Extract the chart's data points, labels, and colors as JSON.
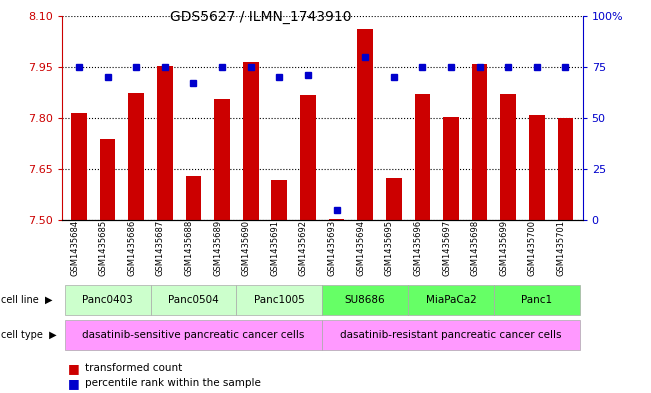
{
  "title": "GDS5627 / ILMN_1743910",
  "samples": [
    "GSM1435684",
    "GSM1435685",
    "GSM1435686",
    "GSM1435687",
    "GSM1435688",
    "GSM1435689",
    "GSM1435690",
    "GSM1435691",
    "GSM1435692",
    "GSM1435693",
    "GSM1435694",
    "GSM1435695",
    "GSM1435696",
    "GSM1435697",
    "GSM1435698",
    "GSM1435699",
    "GSM1435700",
    "GSM1435701"
  ],
  "bar_values": [
    7.814,
    7.737,
    7.873,
    7.951,
    7.628,
    7.856,
    7.965,
    7.617,
    7.868,
    7.503,
    8.062,
    7.625,
    7.869,
    7.803,
    7.958,
    7.869,
    7.808,
    7.8
  ],
  "dot_values": [
    75,
    70,
    75,
    75,
    67,
    75,
    75,
    70,
    71,
    5,
    80,
    70,
    75,
    75,
    75,
    75,
    75,
    75
  ],
  "bar_color": "#cc0000",
  "dot_color": "#0000cc",
  "ylim_left": [
    7.5,
    8.1
  ],
  "ylim_right": [
    0,
    100
  ],
  "yticks_left": [
    7.5,
    7.65,
    7.8,
    7.95,
    8.1
  ],
  "yticks_right": [
    0,
    25,
    50,
    75,
    100
  ],
  "cell_lines": [
    {
      "name": "Panc0403",
      "start": 0,
      "end": 3,
      "color": "#ccffcc"
    },
    {
      "name": "Panc0504",
      "start": 3,
      "end": 6,
      "color": "#ccffcc"
    },
    {
      "name": "Panc1005",
      "start": 6,
      "end": 9,
      "color": "#ccffcc"
    },
    {
      "name": "SU8686",
      "start": 9,
      "end": 12,
      "color": "#66ff66"
    },
    {
      "name": "MiaPaCa2",
      "start": 12,
      "end": 15,
      "color": "#66ff66"
    },
    {
      "name": "Panc1",
      "start": 15,
      "end": 18,
      "color": "#66ff66"
    }
  ],
  "cell_types": [
    {
      "name": "dasatinib-sensitive pancreatic cancer cells",
      "start": 0,
      "end": 9,
      "color": "#ff99ff"
    },
    {
      "name": "dasatinib-resistant pancreatic cancer cells",
      "start": 9,
      "end": 18,
      "color": "#ff99ff"
    }
  ],
  "legend_bar_label": "transformed count",
  "legend_dot_label": "percentile rank within the sample",
  "background_color": "#ffffff",
  "tick_label_color_left": "#cc0000",
  "tick_label_color_right": "#0000cc"
}
